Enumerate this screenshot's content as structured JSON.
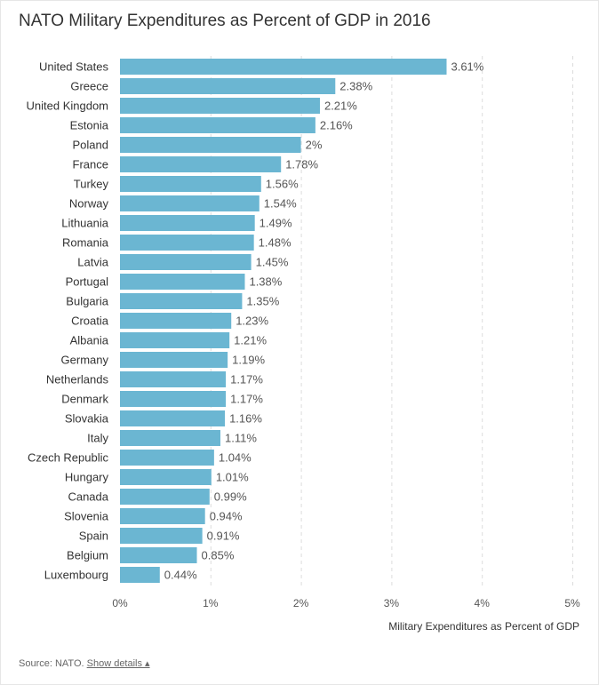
{
  "title": "NATO Military Expenditures as Percent of GDP in 2016",
  "source": {
    "prefix": "Source: NATO.",
    "link_label": "Show details ▴"
  },
  "colors": {
    "bar": "#6bb6d2",
    "grid": "#dcdcdc",
    "text": "#333333",
    "value_text": "#555555"
  },
  "chart_data": {
    "type": "bar",
    "orientation": "horizontal",
    "categories": [
      "United States",
      "Greece",
      "United Kingdom",
      "Estonia",
      "Poland",
      "France",
      "Turkey",
      "Norway",
      "Lithuania",
      "Romania",
      "Latvia",
      "Portugal",
      "Bulgaria",
      "Croatia",
      "Albania",
      "Germany",
      "Netherlands",
      "Denmark",
      "Slovakia",
      "Italy",
      "Czech Republic",
      "Hungary",
      "Canada",
      "Slovenia",
      "Spain",
      "Belgium",
      "Luxembourg"
    ],
    "values": [
      3.61,
      2.38,
      2.21,
      2.16,
      2,
      1.78,
      1.56,
      1.54,
      1.49,
      1.48,
      1.45,
      1.38,
      1.35,
      1.23,
      1.21,
      1.19,
      1.17,
      1.17,
      1.16,
      1.11,
      1.04,
      1.01,
      0.99,
      0.94,
      0.91,
      0.85,
      0.44
    ],
    "value_labels": [
      "3.61%",
      "2.38%",
      "2.21%",
      "2.16%",
      "2%",
      "1.78%",
      "1.56%",
      "1.54%",
      "1.49%",
      "1.48%",
      "1.45%",
      "1.38%",
      "1.35%",
      "1.23%",
      "1.21%",
      "1.19%",
      "1.17%",
      "1.17%",
      "1.16%",
      "1.11%",
      "1.04%",
      "1.01%",
      "0.99%",
      "0.94%",
      "0.91%",
      "0.85%",
      "0.44%"
    ],
    "xlim": [
      0,
      5
    ],
    "x_ticks": [
      0,
      1,
      2,
      3,
      4,
      5
    ],
    "x_tick_labels": [
      "0%",
      "1%",
      "2%",
      "3%",
      "4%",
      "5%"
    ],
    "xlabel": "Military Expenditures as Percent of GDP",
    "ylabel": "",
    "grid": true,
    "grid_style": "dashed vertical"
  }
}
